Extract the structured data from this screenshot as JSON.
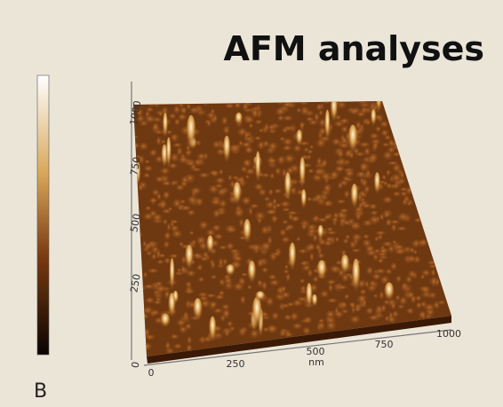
{
  "title": "AFM analyses",
  "panel_label": "B",
  "x_axis": {
    "ticks": [
      "0",
      "250",
      "500",
      "750",
      "1000"
    ],
    "unit": "nm"
  },
  "y_axis": {
    "ticks": [
      "0",
      "250",
      "500",
      "750",
      "1000"
    ]
  }
}
